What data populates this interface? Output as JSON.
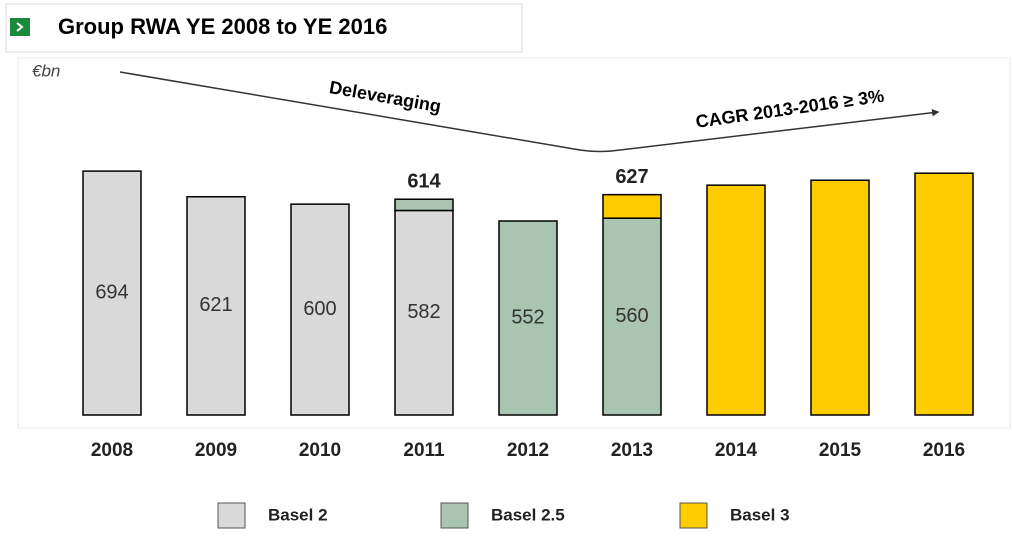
{
  "chart_data": {
    "type": "stacked_bar",
    "title": "Group RWA YE 2008 to YE 2016",
    "unit_label": "€bn",
    "annotations": [
      "Deleveraging",
      "CAGR 2013-2016 ≥ 3%"
    ],
    "categories": [
      "2008",
      "2009",
      "2010",
      "2011",
      "2012",
      "2013",
      "2014",
      "2015",
      "2016"
    ],
    "series": [
      {
        "name": "Basel 2",
        "color": "#d9d9d9",
        "data_labels": true,
        "values": [
          694,
          621,
          600,
          582,
          null,
          null,
          null,
          null,
          null
        ]
      },
      {
        "name": "Basel 2.5",
        "color": "#a9c4b0",
        "data_labels": true,
        "values": [
          null,
          null,
          null,
          32,
          552,
          560,
          null,
          null,
          null
        ]
      },
      {
        "name": "Basel 3",
        "color": "#ffcc00",
        "data_labels": false,
        "values": [
          null,
          null,
          null,
          null,
          null,
          67,
          654,
          668,
          688
        ]
      }
    ],
    "totals": [
      null,
      null,
      null,
      614,
      null,
      627,
      null,
      null,
      null
    ],
    "ylim": [
      0,
      700
    ]
  }
}
